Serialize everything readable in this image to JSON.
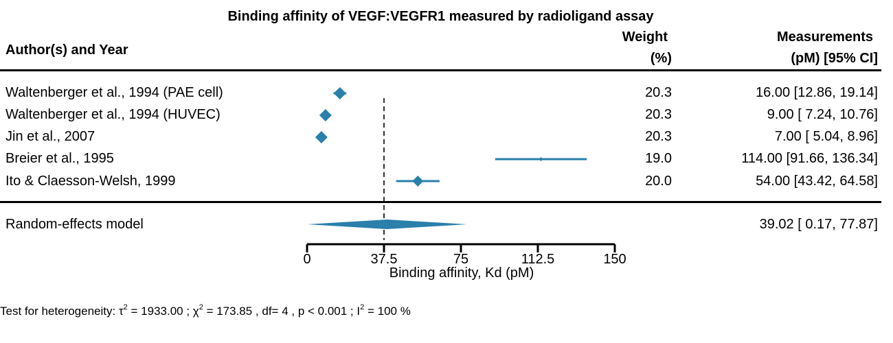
{
  "chart_data": {
    "type": "forest",
    "title": "Binding affinity of VEGF:VEGFR1 measured by radioligand assay",
    "columns": {
      "author": "Author(s) and Year",
      "weight_line1": "Weight",
      "weight_line2": "(%)",
      "measure_line1": "Measurements",
      "measure_line2": "(pM) [95% CI]"
    },
    "studies": [
      {
        "label": "Waltenberger et al., 1994 (PAE cell)",
        "estimate": 16.0,
        "lower": 12.86,
        "upper": 19.14,
        "weight": "20.3",
        "ci_text": "16.00 [12.86,  19.14]"
      },
      {
        "label": "Waltenberger et al., 1994 (HUVEC)",
        "estimate": 9.0,
        "lower": 7.24,
        "upper": 10.76,
        "weight": "20.3",
        "ci_text": "9.00 [ 7.24,  10.76]"
      },
      {
        "label": "Jin et al., 2007",
        "estimate": 7.0,
        "lower": 5.04,
        "upper": 8.96,
        "weight": "20.3",
        "ci_text": "7.00 [ 5.04,   8.96]"
      },
      {
        "label": "Breier et al., 1995",
        "estimate": 114.0,
        "lower": 91.66,
        "upper": 136.34,
        "weight": "19.0",
        "ci_text": "114.00 [91.66, 136.34]"
      },
      {
        "label": "Ito & Claesson-Welsh, 1999",
        "estimate": 54.0,
        "lower": 43.42,
        "upper": 64.58,
        "weight": "20.0",
        "ci_text": "54.00 [43.42,  64.58]"
      }
    ],
    "summary": {
      "label": "Random-effects model",
      "estimate": 39.02,
      "lower": 0.17,
      "upper": 77.87,
      "ci_text": "39.02 [ 0.17,  77.87]"
    },
    "xlabel": "Binding affinity, Kd (pM)",
    "xlim": [
      0,
      150
    ],
    "xticks": [
      0,
      37.5,
      75,
      112.5,
      150
    ],
    "xtick_labels": [
      "0",
      "37.5",
      "75",
      "112.5",
      "150"
    ],
    "reference_line": 37.5,
    "heterogeneity": {
      "prefix": "Test for heterogeneity:  ",
      "tau_symbol": "τ",
      "tau_text": " = 1933.00 ;  ",
      "chi_symbol": "χ",
      "chi_text": " = 173.85 , df= 4 ,  p < 0.001 ;  ",
      "i_symbol": "I",
      "i_text": " = 100 %",
      "superscript": "2"
    },
    "colors": {
      "marker": "#2a7fab",
      "line": "#000000"
    }
  }
}
